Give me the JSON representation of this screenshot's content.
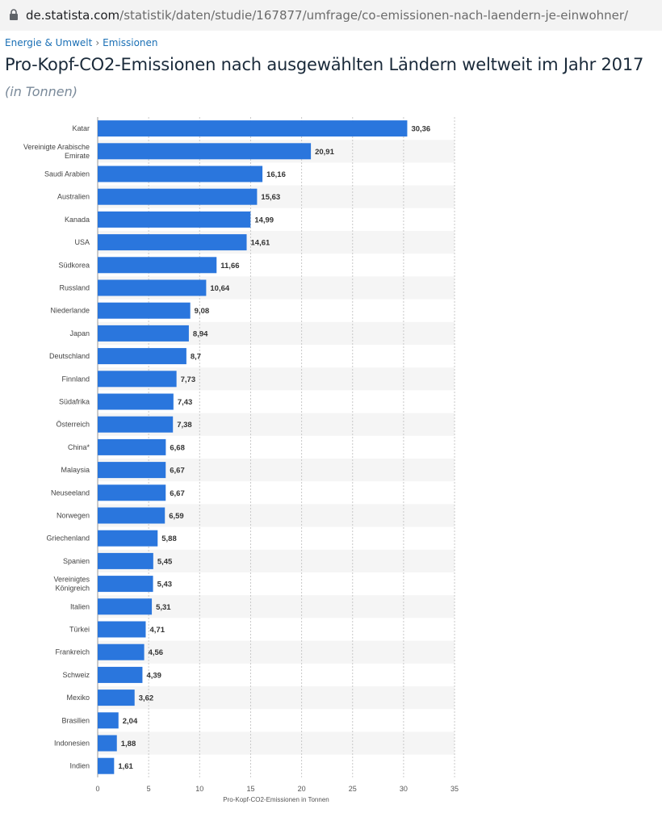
{
  "browser": {
    "url_host": "de.statista.com",
    "url_path": "/statistik/daten/studie/167877/umfrage/co-emissionen-nach-laendern-je-einwohner/"
  },
  "breadcrumb": {
    "category": "Energie & Umwelt",
    "separator": "›",
    "subcategory": "Emissionen"
  },
  "header": {
    "title": "Pro-Kopf-CO2-Emissionen nach ausgewählten Ländern weltweit im Jahr 2017",
    "subtitle": "(in Tonnen)"
  },
  "colors": {
    "bar": "#2a76dd",
    "stripe": "#f5f5f5",
    "grid": "#c8c8c8"
  },
  "chart_data": {
    "type": "bar",
    "orientation": "horizontal",
    "categories": [
      [
        "Katar"
      ],
      [
        "Vereinigte Arabische",
        "Emirate"
      ],
      [
        "Saudi Arabien"
      ],
      [
        "Australien"
      ],
      [
        "Kanada"
      ],
      [
        "USA"
      ],
      [
        "Südkorea"
      ],
      [
        "Russland"
      ],
      [
        "Niederlande"
      ],
      [
        "Japan"
      ],
      [
        "Deutschland"
      ],
      [
        "Finnland"
      ],
      [
        "Südafrika"
      ],
      [
        "Österreich"
      ],
      [
        "China*"
      ],
      [
        "Malaysia"
      ],
      [
        "Neuseeland"
      ],
      [
        "Norwegen"
      ],
      [
        "Griechenland"
      ],
      [
        "Spanien"
      ],
      [
        "Vereinigtes",
        "Königreich"
      ],
      [
        "Italien"
      ],
      [
        "Türkei"
      ],
      [
        "Frankreich"
      ],
      [
        "Schweiz"
      ],
      [
        "Mexiko"
      ],
      [
        "Brasilien"
      ],
      [
        "Indonesien"
      ],
      [
        "Indien"
      ]
    ],
    "values": [
      30.36,
      20.91,
      16.16,
      15.63,
      14.99,
      14.61,
      11.66,
      10.64,
      9.08,
      8.94,
      8.7,
      7.73,
      7.43,
      7.38,
      6.68,
      6.67,
      6.67,
      6.59,
      5.88,
      5.45,
      5.43,
      5.31,
      4.71,
      4.56,
      4.39,
      3.62,
      2.04,
      1.88,
      1.61
    ],
    "value_labels": [
      "30,36",
      "20,91",
      "16,16",
      "15,63",
      "14,99",
      "14,61",
      "11,66",
      "10,64",
      "9,08",
      "8,94",
      "8,7",
      "7,73",
      "7,43",
      "7,38",
      "6,68",
      "6,67",
      "6,67",
      "6,59",
      "5,88",
      "5,45",
      "5,43",
      "5,31",
      "4,71",
      "4,56",
      "4,39",
      "3,62",
      "2,04",
      "1,88",
      "1,61"
    ],
    "xlim": [
      0,
      35
    ],
    "xticks": [
      "0",
      "5",
      "10",
      "15",
      "20",
      "25",
      "30",
      "35"
    ],
    "xlabel": "Pro-Kopf-CO2-Emissionen in Tonnen",
    "grid": true
  }
}
